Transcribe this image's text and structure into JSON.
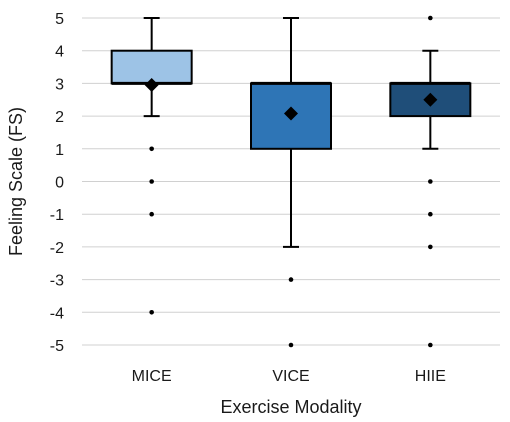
{
  "chart_data": {
    "type": "boxplot",
    "xlabel": "Exercise Modality",
    "ylabel": "Feeling Scale (FS)",
    "ylim": [
      -5,
      5
    ],
    "yticks": [
      "5",
      "4",
      "3",
      "2",
      "1",
      "0",
      "-1",
      "-2",
      "-3",
      "-4",
      "-5"
    ],
    "grid": "horizontal",
    "categories": [
      "MICE",
      "VICE",
      "HIIE"
    ],
    "boxes": [
      {
        "category": "MICE",
        "whisker_low": 2,
        "q1": 3,
        "median": 3,
        "q3": 4,
        "whisker_high": 5,
        "mean": 2.95,
        "outliers": [
          1,
          0,
          -1,
          -4
        ],
        "color": "#9dc3e6"
      },
      {
        "category": "VICE",
        "whisker_low": -2,
        "q1": 1,
        "median": 3,
        "q3": 3,
        "whisker_high": 5,
        "mean": 2.08,
        "outliers": [
          -3,
          -5
        ],
        "color": "#2e75b6"
      },
      {
        "category": "HIIE",
        "whisker_low": 1,
        "q1": 2,
        "median": 3,
        "q3": 3,
        "whisker_high": 4,
        "mean": 2.5,
        "outliers": [
          5,
          0,
          -1,
          -2,
          -5
        ],
        "color": "#1f4e79"
      }
    ]
  }
}
